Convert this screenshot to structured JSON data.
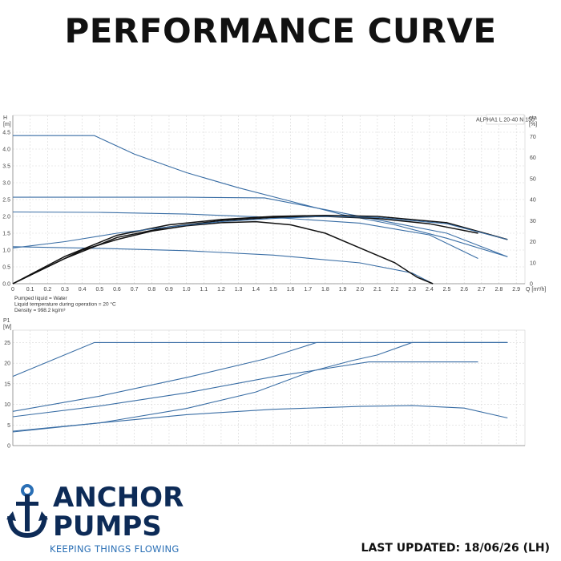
{
  "header": {
    "title": "PERFORMANCE CURVE"
  },
  "footer": {
    "logo_line1": "ANCHOR",
    "logo_line2": "PUMPS",
    "tagline": "KEEPING THINGS FLOWING",
    "last_updated": "LAST UPDATED: 18/06/26 (LH)"
  },
  "colors": {
    "curve_blue": "#3a6ea5",
    "curve_black": "#111111",
    "brand_navy": "#0d2b57",
    "brand_blue": "#2a6fb5"
  },
  "chart_data": [
    {
      "type": "line",
      "model_label": "ALPHA1 L 20-40 N 150",
      "ylabel": "H",
      "yunit": "[m]",
      "ylabel_right": "eta",
      "yunit_right": "[%]",
      "xlabel": "Q [m³/h]",
      "xlim": [
        0,
        2.95
      ],
      "ylim": [
        0,
        5.0
      ],
      "ylim_right": [
        0,
        80
      ],
      "x_ticks": [
        "0",
        "0.1",
        "0.2",
        "0.3",
        "0.4",
        "0.5",
        "0.6",
        "0.7",
        "0.8",
        "0.9",
        "1.0",
        "1.1",
        "1.2",
        "1.3",
        "1.4",
        "1.5",
        "1.6",
        "1.7",
        "1.8",
        "1.9",
        "2.0",
        "2.1",
        "2.2",
        "2.3",
        "2.4",
        "2.5",
        "2.6",
        "2.7",
        "2.8",
        "2.9"
      ],
      "y_ticks": [
        "0.0",
        "0.5",
        "1.0",
        "1.5",
        "2.0",
        "2.5",
        "3.0",
        "3.5",
        "4.0",
        "4.5"
      ],
      "y_ticks_right": [
        "0",
        "10",
        "20",
        "30",
        "40",
        "50",
        "60",
        "70"
      ],
      "notes": [
        "Pumped liquid = Water",
        "Liquid temperature during operation = 20 °C",
        "Density = 998.2 kg/m³"
      ],
      "grid": true,
      "series": [
        {
          "kind": "head",
          "color": "blue",
          "points": [
            [
              0,
              4.4
            ],
            [
              0.47,
              4.4
            ],
            [
              0.7,
              3.85
            ],
            [
              1.0,
              3.3
            ],
            [
              1.3,
              2.85
            ],
            [
              1.6,
              2.45
            ],
            [
              1.9,
              2.05
            ],
            [
              2.2,
              1.75
            ],
            [
              2.5,
              1.35
            ],
            [
              2.85,
              0.8
            ]
          ]
        },
        {
          "kind": "head",
          "color": "blue",
          "points": [
            [
              0,
              2.57
            ],
            [
              1.0,
              2.57
            ],
            [
              1.45,
              2.55
            ],
            [
              1.8,
              2.2
            ],
            [
              2.2,
              1.8
            ],
            [
              2.5,
              1.5
            ],
            [
              2.85,
              0.8
            ]
          ]
        },
        {
          "kind": "head",
          "color": "blue",
          "points": [
            [
              0,
              2.13
            ],
            [
              0.5,
              2.12
            ],
            [
              1.0,
              2.07
            ],
            [
              1.5,
              1.97
            ],
            [
              2.0,
              1.8
            ],
            [
              2.4,
              1.45
            ],
            [
              2.68,
              0.75
            ]
          ]
        },
        {
          "kind": "head",
          "color": "blue",
          "points": [
            [
              0,
              1.1
            ],
            [
              0.5,
              1.05
            ],
            [
              1.0,
              0.98
            ],
            [
              1.5,
              0.85
            ],
            [
              2.0,
              0.62
            ],
            [
              2.3,
              0.32
            ],
            [
              2.42,
              0.0
            ]
          ]
        },
        {
          "kind": "efficiency",
          "color": "black",
          "points": [
            [
              0,
              0
            ],
            [
              0.2,
              8
            ],
            [
              0.4,
              16
            ],
            [
              0.6,
              21
            ],
            [
              0.8,
              25
            ],
            [
              1.0,
              27.5
            ],
            [
              1.2,
              29
            ],
            [
              1.4,
              29.5
            ],
            [
              1.6,
              28
            ],
            [
              1.8,
              24
            ],
            [
              2.0,
              17
            ],
            [
              2.2,
              10
            ],
            [
              2.33,
              3
            ],
            [
              2.42,
              0
            ]
          ]
        },
        {
          "kind": "efficiency",
          "color": "black",
          "points": [
            [
              0,
              0
            ],
            [
              0.3,
              12
            ],
            [
              0.6,
              22
            ],
            [
              0.9,
              27
            ],
            [
              1.2,
              30
            ],
            [
              1.5,
              31.5
            ],
            [
              1.8,
              32
            ],
            [
              2.1,
              31
            ],
            [
              2.4,
              28.5
            ],
            [
              2.68,
              24
            ]
          ]
        },
        {
          "kind": "efficiency",
          "color": "black",
          "points": [
            [
              0,
              0
            ],
            [
              0.3,
              13
            ],
            [
              0.6,
              23
            ],
            [
              0.9,
              28
            ],
            [
              1.2,
              30.5
            ],
            [
              1.5,
              32
            ],
            [
              1.8,
              32.5
            ],
            [
              2.1,
              32
            ],
            [
              2.5,
              29
            ],
            [
              2.85,
              21
            ]
          ]
        },
        {
          "kind": "efficiency",
          "color": "blue",
          "points": [
            [
              0,
              17
            ],
            [
              0.3,
              20
            ],
            [
              0.6,
              24
            ],
            [
              0.9,
              27
            ],
            [
              1.2,
              29.5
            ],
            [
              1.5,
              31
            ],
            [
              1.8,
              32
            ],
            [
              2.1,
              31.5
            ],
            [
              2.5,
              28.5
            ],
            [
              2.85,
              21
            ]
          ]
        }
      ]
    },
    {
      "type": "line",
      "ylabel": "P1",
      "yunit": "[W]",
      "xlim": [
        0,
        2.95
      ],
      "ylim": [
        0,
        28
      ],
      "y_ticks": [
        "0",
        "5",
        "10",
        "15",
        "20",
        "25"
      ],
      "grid": true,
      "series": [
        {
          "color": "blue",
          "points": [
            [
              0,
              16.8
            ],
            [
              0.47,
              25
            ],
            [
              2.85,
              25
            ]
          ]
        },
        {
          "color": "blue",
          "points": [
            [
              0,
              8.3
            ],
            [
              0.5,
              12
            ],
            [
              1.0,
              16.5
            ],
            [
              1.45,
              21
            ],
            [
              1.75,
              25
            ],
            [
              2.85,
              25
            ]
          ]
        },
        {
          "color": "blue",
          "points": [
            [
              0,
              7.0
            ],
            [
              0.5,
              9.6
            ],
            [
              1.0,
              12.8
            ],
            [
              1.5,
              16.7
            ],
            [
              2.05,
              20.3
            ],
            [
              2.68,
              20.3
            ]
          ]
        },
        {
          "color": "blue",
          "points": [
            [
              0,
              3.5
            ],
            [
              0.5,
              5.5
            ],
            [
              1.0,
              9.0
            ],
            [
              1.4,
              13.0
            ],
            [
              1.72,
              18.0
            ],
            [
              1.95,
              20.6
            ],
            [
              2.1,
              22
            ],
            [
              2.3,
              25
            ],
            [
              2.85,
              25
            ]
          ]
        },
        {
          "color": "blue",
          "points": [
            [
              0,
              3.3
            ],
            [
              0.5,
              5.5
            ],
            [
              1.0,
              7.5
            ],
            [
              1.5,
              8.8
            ],
            [
              2.0,
              9.5
            ],
            [
              2.3,
              9.7
            ],
            [
              2.6,
              9.1
            ],
            [
              2.85,
              6.7
            ]
          ]
        }
      ]
    }
  ]
}
